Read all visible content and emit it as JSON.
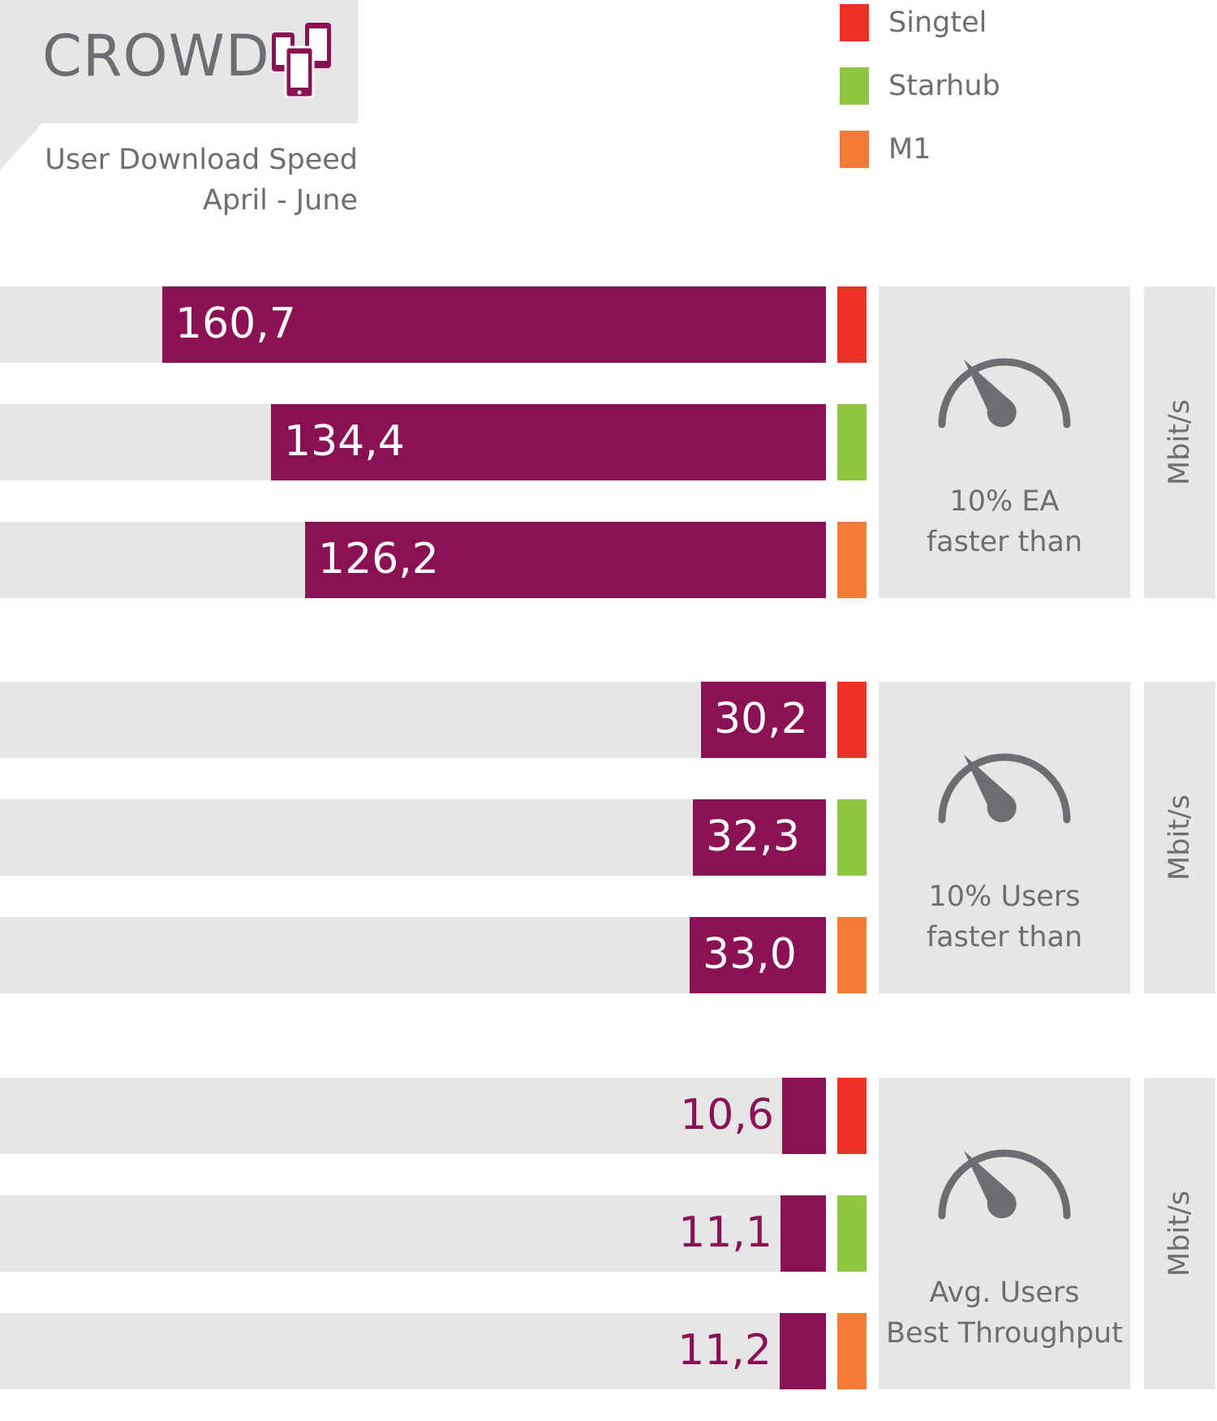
{
  "header": {
    "brand": "CROWD",
    "brand_icon": "mobile-devices-icon",
    "subtitle_line1": "User Download Speed",
    "subtitle_line2": "April - June"
  },
  "legend": [
    {
      "label": "Singtel",
      "color": "#ee3124"
    },
    {
      "label": "Starhub",
      "color": "#8dc63f"
    },
    {
      "label": "M1",
      "color": "#f47b35"
    }
  ],
  "colors": {
    "bar": "#8b1155",
    "track": "#e6e6e6",
    "text": "#6d6e71"
  },
  "chart_data": {
    "type": "bar",
    "orientation": "horizontal",
    "title": "User Download Speed",
    "subtitle": "April - June",
    "series_names": [
      "Singtel",
      "Starhub",
      "M1"
    ],
    "groups": [
      {
        "caption_line1": "10% EA",
        "caption_line2": "faster than",
        "unit": "Mbit/s",
        "values": [
          160.7,
          134.4,
          126.2
        ],
        "labels": [
          "160,7",
          "134,4",
          "126,2"
        ],
        "xlim": [
          0,
          200
        ]
      },
      {
        "caption_line1": "10% Users",
        "caption_line2": "faster than",
        "unit": "Mbit/s",
        "values": [
          30.2,
          32.3,
          33.0
        ],
        "labels": [
          "30,2",
          "32,3",
          "33,0"
        ],
        "xlim": [
          0,
          200
        ]
      },
      {
        "caption_line1": "Avg. Users",
        "caption_line2": "Best Throughput",
        "unit": "Mbit/s",
        "values": [
          10.6,
          11.1,
          11.2
        ],
        "labels": [
          "10,6",
          "11,1",
          "11,2"
        ],
        "xlim": [
          0,
          200
        ]
      }
    ]
  }
}
